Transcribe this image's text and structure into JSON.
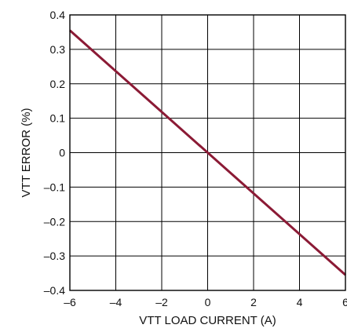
{
  "chart_data": {
    "type": "line",
    "xlabel": "VTT LOAD CURRENT (A)",
    "ylabel": "VTT ERROR (%)",
    "xlim": [
      -6,
      6
    ],
    "ylim": [
      -0.4,
      0.4
    ],
    "xticks": [
      -6,
      -4,
      -2,
      0,
      2,
      4,
      6
    ],
    "xtick_labels": [
      "–6",
      "–4",
      "–2",
      "0",
      "2",
      "4",
      "6"
    ],
    "yticks": [
      0.4,
      0.3,
      0.2,
      0.1,
      0,
      -0.1,
      -0.2,
      -0.3,
      -0.4
    ],
    "ytick_labels": [
      "0.4",
      "0.3",
      "0.2",
      "0.1",
      "0",
      "–0.1",
      "–0.2",
      "–0.3",
      "–0.4"
    ],
    "grid": true,
    "series": [
      {
        "x": [
          -6,
          6
        ],
        "y": [
          0.355,
          -0.355
        ],
        "color": "#8b1a35"
      }
    ]
  }
}
